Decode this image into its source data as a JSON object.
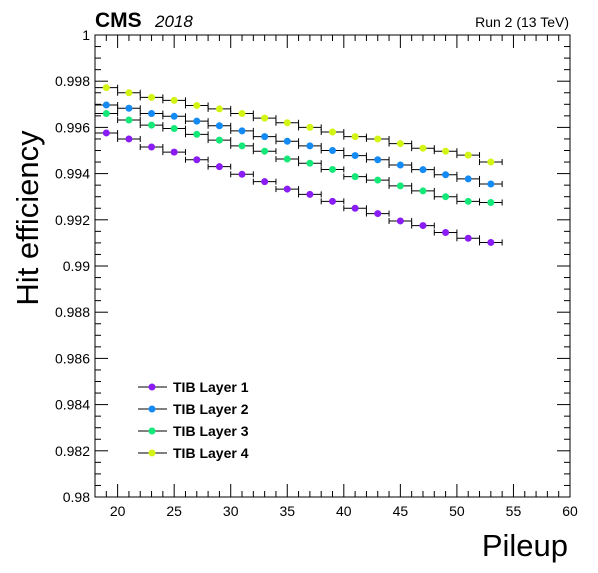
{
  "header": {
    "experiment": "CMS",
    "year": "2018",
    "run_info": "Run 2 (13 TeV)"
  },
  "chart_data": {
    "type": "scatter",
    "xlabel": "Pileup",
    "ylabel": "Hit  efficiency",
    "xlim": [
      18,
      60
    ],
    "ylim": [
      0.98,
      1.0
    ],
    "x_ticks": [
      20,
      25,
      30,
      35,
      40,
      45,
      50,
      55,
      60
    ],
    "y_ticks": [
      "0.98",
      "0.982",
      "0.984",
      "0.986",
      "0.988",
      "0.99",
      "0.992",
      "0.994",
      "0.996",
      "0.998",
      "1"
    ],
    "x_error": 1,
    "legend_position": "bottom-left",
    "x": [
      19,
      21,
      23,
      25,
      27,
      29,
      31,
      33,
      35,
      37,
      39,
      41,
      43,
      45,
      47,
      49,
      51,
      53
    ],
    "series": [
      {
        "name": "TIB Layer 1",
        "color": "#8a1cf5",
        "values": [
          0.99576,
          0.9955,
          0.99515,
          0.99493,
          0.9946,
          0.9943,
          0.99397,
          0.99365,
          0.99333,
          0.9931,
          0.9928,
          0.9925,
          0.99227,
          0.99195,
          0.99175,
          0.99145,
          0.9912,
          0.99102
        ]
      },
      {
        "name": "TIB Layer 2",
        "color": "#148af5",
        "values": [
          0.99697,
          0.99683,
          0.9966,
          0.99648,
          0.99627,
          0.99607,
          0.99585,
          0.9956,
          0.9954,
          0.9952,
          0.995,
          0.99478,
          0.9946,
          0.99437,
          0.99417,
          0.99395,
          0.99377,
          0.99355
        ]
      },
      {
        "name": "TIB Layer 3",
        "color": "#14e878",
        "values": [
          0.9966,
          0.99632,
          0.9961,
          0.99595,
          0.9957,
          0.99545,
          0.9952,
          0.99497,
          0.99463,
          0.99445,
          0.99418,
          0.99387,
          0.99372,
          0.99347,
          0.99325,
          0.993,
          0.9928,
          0.99275
        ]
      },
      {
        "name": "TIB Layer 4",
        "color": "#d4f514",
        "values": [
          0.99772,
          0.9975,
          0.9973,
          0.99717,
          0.99695,
          0.9968,
          0.9966,
          0.9964,
          0.9962,
          0.996,
          0.9958,
          0.9956,
          0.9955,
          0.9953,
          0.9951,
          0.99497,
          0.9948,
          0.9945
        ]
      }
    ]
  }
}
